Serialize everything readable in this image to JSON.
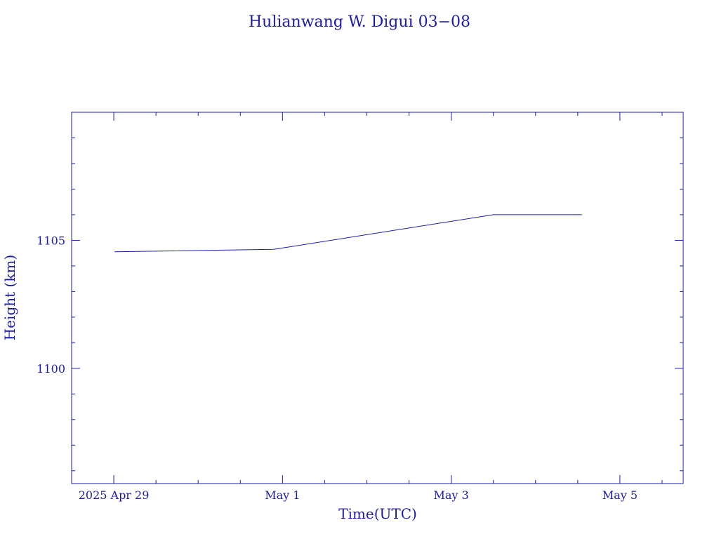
{
  "chart_data": {
    "type": "line",
    "title": "Hulianwang W. Digui 03−08",
    "xlabel": "Time(UTC)",
    "ylabel": "Height (km)",
    "x_ticks": [
      {
        "date": "2025-04-29",
        "label": "2025 Apr 29"
      },
      {
        "date": "2025-05-01",
        "label": "May  1"
      },
      {
        "date": "2025-05-03",
        "label": "May  3"
      },
      {
        "date": "2025-05-05",
        "label": "May  5"
      }
    ],
    "y_ticks": [
      {
        "value": 1100,
        "label": "1100"
      },
      {
        "value": 1105,
        "label": "1105"
      }
    ],
    "xlim": [
      "2025-04-28T12:00",
      "2025-05-05T18:00"
    ],
    "ylim": [
      1095.5,
      1110.0
    ],
    "series": [
      {
        "x": [
          "2025-04-29T00:12",
          "2025-04-30T21:36",
          "2025-05-03T12:00",
          "2025-05-04T13:12"
        ],
        "y": [
          1104.55,
          1104.65,
          1106.0,
          1106.0
        ]
      }
    ],
    "line_color": "#1c1ca8",
    "grid": false,
    "legend": "none"
  }
}
